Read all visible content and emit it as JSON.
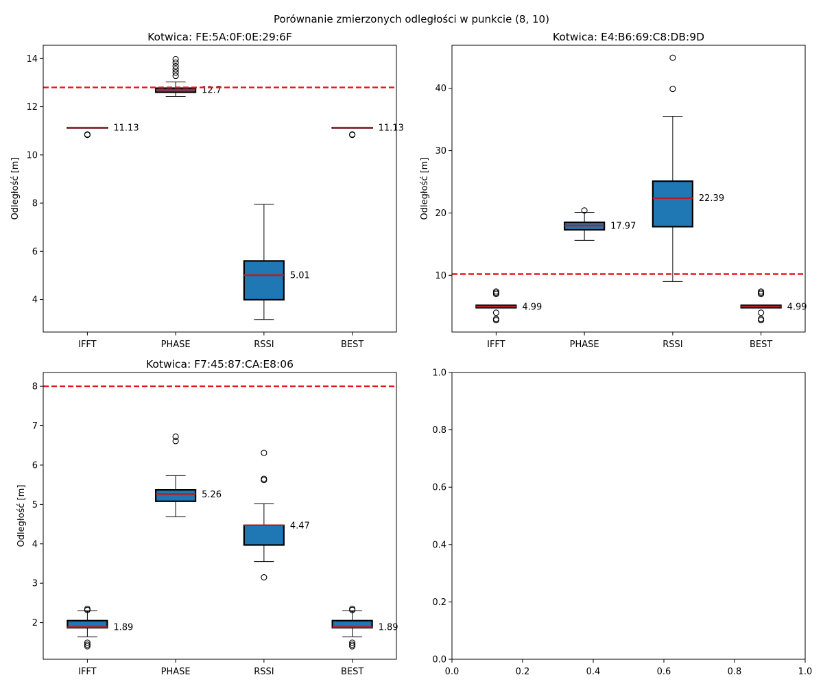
{
  "figure": {
    "suptitle": "Porównanie zmierzonych odległości w punkcie (8, 10)"
  },
  "chart_data": [
    {
      "type": "box",
      "title": "Kotwica: FE:5A:0F:0E:29:6F",
      "ylabel": "Odległość [m]",
      "xlabel": "",
      "categories": [
        "IFFT",
        "PHASE",
        "RSSI",
        "BEST"
      ],
      "ylim": [
        2.65,
        14.55
      ],
      "yticks": [
        4,
        6,
        8,
        10,
        12,
        14
      ],
      "reference_line": 12.8,
      "boxes": [
        {
          "label": "IFFT",
          "q1": 11.13,
          "median": 11.13,
          "q3": 11.13,
          "whisker_low": 11.13,
          "whisker_high": 11.13,
          "outliers": [
            10.85,
            10.83
          ],
          "median_label": "11.13"
        },
        {
          "label": "PHASE",
          "q1": 12.6,
          "median": 12.7,
          "q3": 12.77,
          "whisker_low": 12.43,
          "whisker_high": 13.03,
          "outliers": [
            13.28,
            13.42,
            13.55,
            13.68,
            13.83,
            13.97
          ],
          "median_label": "12.7"
        },
        {
          "label": "RSSI",
          "q1": 3.99,
          "median": 5.01,
          "q3": 5.6,
          "whisker_low": 3.17,
          "whisker_high": 7.95,
          "outliers": [],
          "median_label": "5.01"
        },
        {
          "label": "BEST",
          "q1": 11.13,
          "median": 11.13,
          "q3": 11.13,
          "whisker_low": 11.13,
          "whisker_high": 11.13,
          "outliers": [
            10.85,
            10.83
          ],
          "median_label": "11.13"
        }
      ]
    },
    {
      "type": "box",
      "title": "Kotwica: E4:B6:69:C8:DB:9D",
      "ylabel": "Odległość [m]",
      "xlabel": "",
      "categories": [
        "IFFT",
        "PHASE",
        "RSSI",
        "BEST"
      ],
      "ylim": [
        0.9,
        46.9
      ],
      "yticks": [
        10,
        20,
        30,
        40
      ],
      "reference_line": 10.2,
      "boxes": [
        {
          "label": "IFFT",
          "q1": 4.8,
          "median": 4.99,
          "q3": 5.2,
          "whisker_low": 4.8,
          "whisker_high": 5.2,
          "outliers": [
            2.8,
            3.0,
            4.0,
            7.0,
            7.2,
            7.4
          ],
          "median_label": "4.99"
        },
        {
          "label": "PHASE",
          "q1": 17.3,
          "median": 17.97,
          "q3": 18.5,
          "whisker_low": 15.6,
          "whisker_high": 20.1,
          "outliers": [
            20.4
          ],
          "median_label": "17.97"
        },
        {
          "label": "RSSI",
          "q1": 17.8,
          "median": 22.39,
          "q3": 25.1,
          "whisker_low": 9.0,
          "whisker_high": 35.5,
          "outliers": [
            39.9,
            44.9
          ],
          "median_label": "22.39"
        },
        {
          "label": "BEST",
          "q1": 4.8,
          "median": 4.99,
          "q3": 5.2,
          "whisker_low": 4.8,
          "whisker_high": 5.2,
          "outliers": [
            2.8,
            3.0,
            4.0,
            7.0,
            7.2,
            7.4
          ],
          "median_label": "4.99"
        }
      ]
    },
    {
      "type": "box",
      "title": "Kotwica: F7:45:87:CA:E8:06",
      "ylabel": "Odległość [m]",
      "xlabel": "",
      "categories": [
        "IFFT",
        "PHASE",
        "RSSI",
        "BEST"
      ],
      "ylim": [
        1.07,
        8.35
      ],
      "yticks": [
        2,
        3,
        4,
        5,
        6,
        7,
        8
      ],
      "reference_line": 8.0,
      "boxes": [
        {
          "label": "IFFT",
          "q1": 1.87,
          "median": 1.89,
          "q3": 2.05,
          "whisker_low": 1.64,
          "whisker_high": 2.3,
          "outliers": [
            1.4,
            1.44,
            1.49,
            2.32,
            2.35
          ],
          "median_label": "1.89"
        },
        {
          "label": "PHASE",
          "q1": 5.08,
          "median": 5.26,
          "q3": 5.37,
          "whisker_low": 4.69,
          "whisker_high": 5.73,
          "outliers": [
            6.61,
            6.72
          ],
          "median_label": "5.26"
        },
        {
          "label": "RSSI",
          "q1": 3.97,
          "median": 4.47,
          "q3": 4.47,
          "whisker_low": 3.55,
          "whisker_high": 5.02,
          "outliers": [
            3.15,
            5.62,
            5.65,
            6.31
          ],
          "median_label": "4.47"
        },
        {
          "label": "BEST",
          "q1": 1.87,
          "median": 1.89,
          "q3": 2.05,
          "whisker_low": 1.64,
          "whisker_high": 2.3,
          "outliers": [
            1.4,
            1.44,
            1.49,
            2.32,
            2.35
          ],
          "median_label": "1.89"
        }
      ]
    },
    {
      "type": "empty",
      "title": "",
      "xlim": [
        0,
        1
      ],
      "ylim": [
        0,
        1
      ],
      "xticks": [
        "0.0",
        "0.2",
        "0.4",
        "0.6",
        "0.8",
        "1.0"
      ],
      "yticks": [
        "0.0",
        "0.2",
        "0.4",
        "0.6",
        "0.8",
        "1.0"
      ]
    }
  ],
  "colors": {
    "box_fill": "#1f77b4",
    "median": "#b22222",
    "reference_line": "#e6191a",
    "axes": "#000000"
  }
}
